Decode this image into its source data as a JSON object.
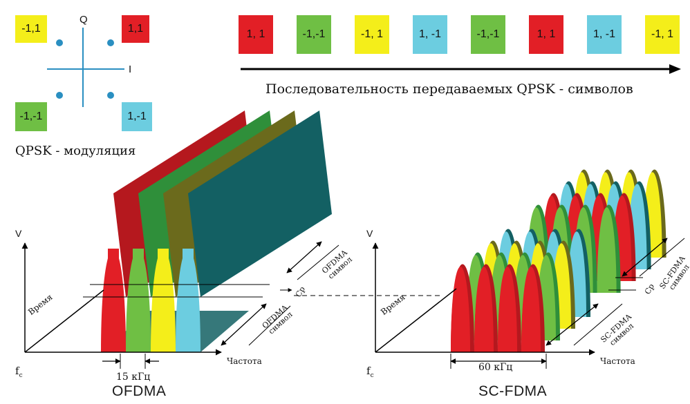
{
  "colors": {
    "red": "#e21f26",
    "green": "#6fbf44",
    "yellow": "#f4ee1a",
    "cyan": "#6ccde0",
    "dark_red": "#b5181e",
    "dark_green": "#2f8f3a",
    "olive": "#6b6a1c",
    "teal": "#136063",
    "axis": "#2a8fc1",
    "dot": "#2a8fc1"
  },
  "qpsk": {
    "q_label": "Q",
    "i_label": "I",
    "points": [
      {
        "label": "-1,1",
        "color": "yellow"
      },
      {
        "label": "1,1",
        "color": "red"
      },
      {
        "label": "-1,-1",
        "color": "green"
      },
      {
        "label": "1,-1",
        "color": "cyan"
      }
    ],
    "caption": "QPSK - модуляция"
  },
  "sequence": {
    "symbols": [
      {
        "label": "1, 1",
        "color": "red"
      },
      {
        "label": "-1,-1",
        "color": "green"
      },
      {
        "label": "-1, 1",
        "color": "yellow"
      },
      {
        "label": "1, -1",
        "color": "cyan"
      },
      {
        "label": "-1,-1",
        "color": "green"
      },
      {
        "label": "1, 1",
        "color": "red"
      },
      {
        "label": "1, -1",
        "color": "cyan"
      },
      {
        "label": "-1, 1",
        "color": "yellow"
      }
    ],
    "caption": "Последовательность передаваемых QPSK - символов"
  },
  "ofdma": {
    "title": "OFDMA",
    "v_label": "V",
    "fc_label": "f",
    "fc_sub": "c",
    "time_label": "Время",
    "freq_label": "Частота",
    "bandwidth_label": "15 кГц",
    "symbol_label_1": "OFDMA символ",
    "symbol_label_2": "OFDMA символ",
    "cp_label": "Cp"
  },
  "scfdma": {
    "title": "SC-FDMA",
    "v_label": "V",
    "fc_label": "f",
    "fc_sub": "c",
    "time_label": "Время",
    "freq_label": "Частота",
    "bandwidth_label": "60 кГц",
    "symbol_label_1": "SC-FDMA символ",
    "symbol_label_2": "SC-FDMA символ",
    "cp_label": "Cp"
  }
}
